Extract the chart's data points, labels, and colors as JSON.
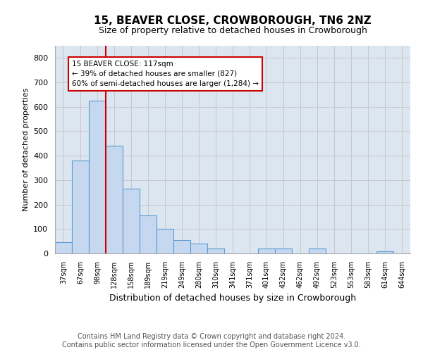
{
  "title": "15, BEAVER CLOSE, CROWBOROUGH, TN6 2NZ",
  "subtitle": "Size of property relative to detached houses in Crowborough",
  "xlabel": "Distribution of detached houses by size in Crowborough",
  "ylabel": "Number of detached properties",
  "footer_line1": "Contains HM Land Registry data © Crown copyright and database right 2024.",
  "footer_line2": "Contains public sector information licensed under the Open Government Licence v3.0.",
  "categories": [
    "37sqm",
    "67sqm",
    "98sqm",
    "128sqm",
    "158sqm",
    "189sqm",
    "219sqm",
    "249sqm",
    "280sqm",
    "310sqm",
    "341sqm",
    "371sqm",
    "401sqm",
    "432sqm",
    "462sqm",
    "492sqm",
    "523sqm",
    "553sqm",
    "583sqm",
    "614sqm",
    "644sqm"
  ],
  "values": [
    45,
    380,
    625,
    440,
    265,
    155,
    100,
    55,
    40,
    20,
    0,
    0,
    20,
    20,
    0,
    20,
    0,
    0,
    0,
    10,
    0
  ],
  "bar_color": "#c5d8ef",
  "bar_edge_color": "#5b9bd5",
  "annotation_box_text": "15 BEAVER CLOSE: 117sqm\n← 39% of detached houses are smaller (827)\n60% of semi-detached houses are larger (1,284) →",
  "annotation_box_color": "#ffffff",
  "annotation_box_edge_color": "#cc0000",
  "vline_x": 2.5,
  "vline_color": "#cc0000",
  "ylim": [
    0,
    850
  ],
  "yticks": [
    0,
    100,
    200,
    300,
    400,
    500,
    600,
    700,
    800
  ],
  "grid_color": "#c8c8c8",
  "bg_color": "#dce6f1",
  "title_fontsize": 11,
  "subtitle_fontsize": 9,
  "footer_fontsize": 7,
  "ylabel_fontsize": 8,
  "xlabel_fontsize": 9
}
